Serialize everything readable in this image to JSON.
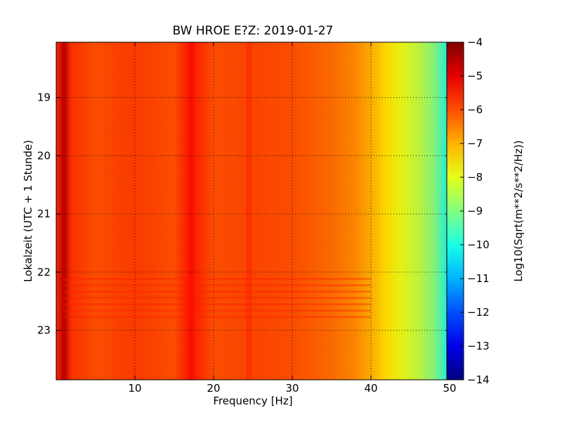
{
  "chart_data": {
    "type": "heatmap",
    "title": "BW HROE E?Z: 2019-01-27",
    "xlabel": "Frequency [Hz]",
    "ylabel": "Lokalzeit (UTC + 1 Stunde)",
    "xlim": [
      0,
      50
    ],
    "ylim": [
      18.05,
      23.85
    ],
    "x_ticks": [
      10,
      20,
      30,
      40,
      50
    ],
    "y_ticks": [
      19,
      20,
      21,
      22,
      23
    ],
    "y_inverted": true,
    "grid": true,
    "colormap": "jet",
    "colorbar": {
      "label": "Log10(Sqrt(m**2/s**2/Hz))",
      "range": [
        -14,
        -4
      ],
      "ticks": [
        -4,
        -5,
        -6,
        -7,
        -8,
        -9,
        -10,
        -11,
        -12,
        -13,
        -14
      ]
    },
    "typical_profile": {
      "frequency_hz": [
        0,
        1,
        2,
        5,
        10,
        15,
        17,
        20,
        25,
        30,
        35,
        38,
        40,
        42,
        44,
        46,
        48,
        50
      ],
      "log10_amplitude": [
        -5.6,
        -4.6,
        -5.7,
        -6.0,
        -5.8,
        -6.0,
        -5.4,
        -6.0,
        -5.9,
        -6.0,
        -6.3,
        -6.6,
        -7.0,
        -7.5,
        -8.0,
        -8.4,
        -9.0,
        -10.3
      ]
    },
    "features": [
      {
        "type": "line",
        "frequency_hz": 1.0,
        "log10_amplitude": -4.6
      },
      {
        "type": "line",
        "frequency_hz": 17.2,
        "log10_amplitude": -5.3
      },
      {
        "type": "line",
        "frequency_hz": 24.5,
        "log10_amplitude": -5.6
      },
      {
        "type": "band",
        "time_from": 22.1,
        "time_to": 22.8,
        "log10_amplitude": -5.5
      }
    ]
  }
}
